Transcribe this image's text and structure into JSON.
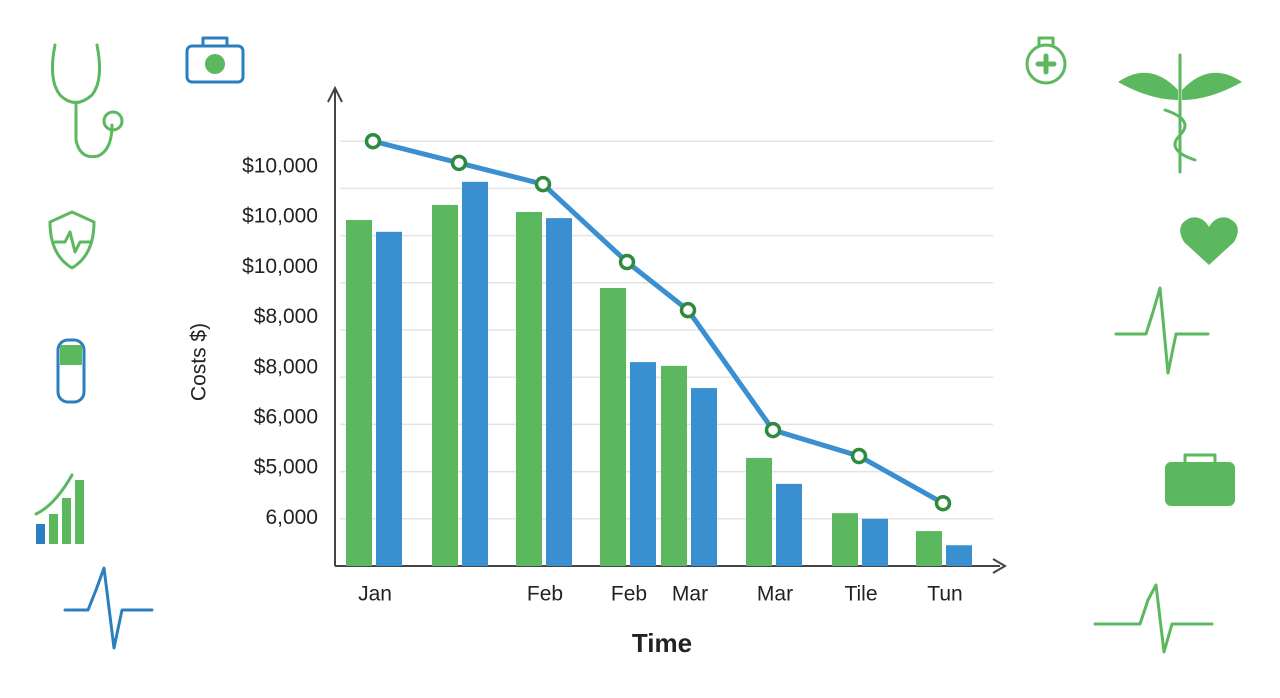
{
  "chart_data": {
    "type": "bar_line",
    "x_axis_label": "Time",
    "y_axis_label": "Costs $)",
    "y_axis_labels": [
      "$10,000",
      "$10,000",
      "$10,000",
      "$8,000",
      "$8,000",
      "$6,000",
      "$5,000",
      "6,000"
    ],
    "categories": [
      "Jan",
      null,
      "Feb",
      "Feb",
      "Mar",
      "Mar",
      "Tile",
      "Tun"
    ],
    "ylim": [
      0,
      10
    ],
    "grid": true,
    "series": [
      {
        "type": "bar",
        "color": "#5cb85f",
        "values": [
          7.33,
          7.65,
          7.5,
          5.89,
          4.24,
          2.29,
          1.12,
          0.74
        ]
      },
      {
        "type": "bar",
        "color": "#3a8fd0",
        "values": [
          7.08,
          8.14,
          7.37,
          4.32,
          3.77,
          1.74,
          1.0,
          0.44
        ]
      },
      {
        "type": "line",
        "color": "#3a8fd0",
        "marker_color": "#2e8b3e",
        "values": [
          9.0,
          8.54,
          8.09,
          6.44,
          5.42,
          2.88,
          2.33,
          1.33
        ]
      }
    ]
  }
}
